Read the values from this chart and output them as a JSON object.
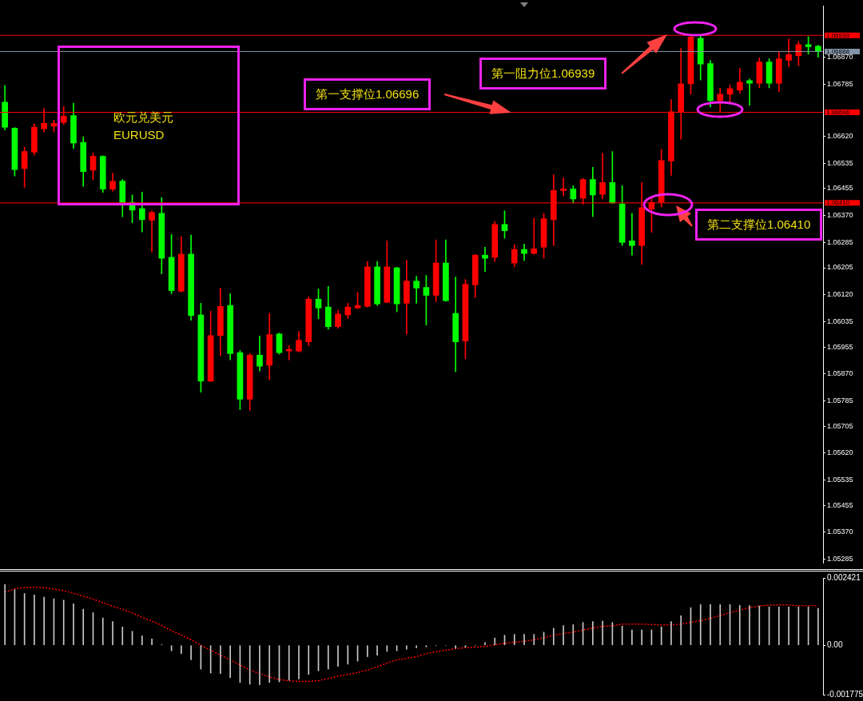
{
  "chart_data": [
    {
      "type": "candlestick",
      "categories": [
        null,
        null,
        null,
        null,
        null,
        null,
        null,
        null,
        null,
        null,
        null,
        null,
        null,
        null,
        null,
        null,
        null,
        null,
        null,
        null,
        null,
        null,
        null,
        null,
        null,
        null,
        null,
        null,
        null,
        null,
        null,
        null,
        null,
        null,
        null,
        null,
        null,
        null,
        null,
        null,
        null,
        null,
        null,
        null,
        null,
        null,
        null,
        null,
        null,
        null,
        null,
        null,
        null,
        null,
        null,
        null,
        null,
        null,
        null,
        null,
        null,
        null,
        null,
        null,
        null,
        null,
        null,
        null,
        null,
        null,
        null,
        null,
        null,
        null,
        null,
        null,
        null,
        null,
        null,
        null,
        null,
        null,
        null,
        null
      ],
      "ohlc": [
        [
          1.06728,
          1.06781,
          1.0664,
          1.06649
        ],
        [
          1.06646,
          1.06648,
          1.06495,
          1.06515
        ],
        [
          1.06518,
          1.06586,
          1.06459,
          1.06572
        ],
        [
          1.0657,
          1.06659,
          1.06561,
          1.06649
        ],
        [
          1.06644,
          1.06708,
          1.06634,
          1.06661
        ],
        [
          1.06652,
          1.06671,
          1.06634,
          1.06661
        ],
        [
          1.06664,
          1.06714,
          1.06657,
          1.06684
        ],
        [
          1.06686,
          1.06725,
          1.06582,
          1.06599
        ],
        [
          1.06601,
          1.06619,
          1.06462,
          1.06509
        ],
        [
          1.06513,
          1.06567,
          1.06482,
          1.06557
        ],
        [
          1.06557,
          1.06559,
          1.06443,
          1.06453
        ],
        [
          1.06453,
          1.06504,
          1.06447,
          1.06478
        ],
        [
          1.06479,
          1.06484,
          1.06366,
          1.0641
        ],
        [
          1.06412,
          1.06435,
          1.06347,
          1.06387
        ],
        [
          1.06392,
          1.06444,
          1.06318,
          1.06357
        ],
        [
          1.06355,
          1.06385,
          1.06256,
          1.0638
        ],
        [
          1.06377,
          1.06427,
          1.06186,
          1.06235
        ],
        [
          1.06238,
          1.0631,
          1.06123,
          1.06133
        ],
        [
          1.06131,
          1.06303,
          1.06129,
          1.06248
        ],
        [
          1.06248,
          1.06308,
          1.06039,
          1.06054
        ],
        [
          1.06056,
          1.06093,
          1.05812,
          1.05847
        ],
        [
          1.05847,
          1.06068,
          1.05845,
          1.05991
        ],
        [
          1.05991,
          1.06141,
          1.05927,
          1.06083
        ],
        [
          1.06086,
          1.06123,
          1.05914,
          1.05934
        ],
        [
          1.05937,
          1.05944,
          1.05757,
          1.0579
        ],
        [
          1.0579,
          1.05934,
          1.05755,
          1.05929
        ],
        [
          1.05929,
          1.05989,
          1.05879,
          1.05894
        ],
        [
          1.05897,
          1.06061,
          1.05852,
          1.05994
        ],
        [
          1.05996,
          1.05999,
          1.05932,
          1.05937
        ],
        [
          1.05942,
          1.05959,
          1.05914,
          1.05947
        ],
        [
          1.05942,
          1.06004,
          1.05939,
          1.05976
        ],
        [
          1.05971,
          1.06113,
          1.05959,
          1.06106
        ],
        [
          1.06106,
          1.06138,
          1.06044,
          1.06078
        ],
        [
          1.06081,
          1.06146,
          1.06011,
          1.06019
        ],
        [
          1.06019,
          1.06071,
          1.06014,
          1.06059
        ],
        [
          1.06056,
          1.06093,
          1.06044,
          1.06081
        ],
        [
          1.06078,
          1.06128,
          1.06076,
          1.06086
        ],
        [
          1.06083,
          1.06225,
          1.06081,
          1.06208
        ],
        [
          1.06208,
          1.06225,
          1.06086,
          1.06091
        ],
        [
          1.06096,
          1.0629,
          1.06094,
          1.06208
        ],
        [
          1.06205,
          1.06207,
          1.06066,
          1.06091
        ],
        [
          1.06093,
          1.06228,
          1.05996,
          1.06163
        ],
        [
          1.06163,
          1.06178,
          1.06093,
          1.06141
        ],
        [
          1.06143,
          1.06181,
          1.06024,
          1.06118
        ],
        [
          1.06118,
          1.06293,
          1.06098,
          1.0622
        ],
        [
          1.0622,
          1.06293,
          1.06099,
          1.06101
        ],
        [
          1.06061,
          1.06176,
          1.05877,
          1.05971
        ],
        [
          1.05974,
          1.06168,
          1.05917,
          1.06153
        ],
        [
          1.06151,
          1.06248,
          1.06111,
          1.06245
        ],
        [
          1.06245,
          1.0627,
          1.06193,
          1.06235
        ],
        [
          1.06238,
          1.06352,
          1.06225,
          1.06342
        ],
        [
          1.06342,
          1.06385,
          1.06298,
          1.06322
        ],
        [
          1.0622,
          1.06278,
          1.06208,
          1.06263
        ],
        [
          1.06263,
          1.0628,
          1.06228,
          1.0625
        ],
        [
          1.0625,
          1.06362,
          1.06248,
          1.06265
        ],
        [
          1.0627,
          1.06377,
          1.06235,
          1.0636
        ],
        [
          1.06357,
          1.06499,
          1.06275,
          1.06449
        ],
        [
          1.06449,
          1.06489,
          1.06432,
          1.06454
        ],
        [
          1.06454,
          1.06464,
          1.0641,
          1.06422
        ],
        [
          1.06425,
          1.06487,
          1.06405,
          1.06484
        ],
        [
          1.06484,
          1.06522,
          1.06367,
          1.06435
        ],
        [
          1.06437,
          1.06567,
          1.06422,
          1.06474
        ],
        [
          1.06474,
          1.06572,
          1.06408,
          1.0641
        ],
        [
          1.06407,
          1.06464,
          1.06275,
          1.06285
        ],
        [
          1.0629,
          1.06377,
          1.06245,
          1.06275
        ],
        [
          1.06275,
          1.06474,
          1.06215,
          1.06395
        ],
        [
          1.0639,
          1.06427,
          1.06317,
          1.06412
        ],
        [
          1.06412,
          1.06579,
          1.06397,
          1.06544
        ],
        [
          1.06542,
          1.06736,
          1.06497,
          1.06698
        ],
        [
          1.06698,
          1.06898,
          1.06611,
          1.06786
        ],
        [
          1.06786,
          1.06936,
          1.06753,
          1.06934
        ],
        [
          1.0693,
          1.06939,
          1.06798,
          1.06848
        ],
        [
          1.0685,
          1.0686,
          1.06713,
          1.06733
        ],
        [
          1.06733,
          1.06773,
          1.06696,
          1.06753
        ],
        [
          1.06753,
          1.06783,
          1.06728,
          1.06771
        ],
        [
          1.06766,
          1.06835,
          1.06756,
          1.06791
        ],
        [
          1.06796,
          1.06801,
          1.06718,
          1.06788
        ],
        [
          1.06788,
          1.06868,
          1.06773,
          1.06855
        ],
        [
          1.06855,
          1.06865,
          1.06773,
          1.06788
        ],
        [
          1.06788,
          1.06888,
          1.06761,
          1.06865
        ],
        [
          1.0686,
          1.06928,
          1.0684,
          1.06878
        ],
        [
          1.06875,
          1.0692,
          1.06843,
          1.0691
        ],
        [
          1.0691,
          1.06935,
          1.0688,
          1.06903
        ],
        [
          1.06905,
          1.06908,
          1.0687,
          1.06888
        ]
      ],
      "colors": [
        "#00ff00",
        "#00ff00",
        "#ff0000",
        "#ff0000",
        "#ff0000",
        "#ff0000",
        "#ff0000",
        "#00ff00",
        "#00ff00",
        "#ff0000",
        "#00ff00",
        "#ff0000",
        "#00ff00",
        "#00ff00",
        "#00ff00",
        "#ff0000",
        "#00ff00",
        "#00ff00",
        "#ff0000",
        "#00ff00",
        "#00ff00",
        "#ff0000",
        "#ff0000",
        "#00ff00",
        "#00ff00",
        "#ff0000",
        "#00ff00",
        "#ff0000",
        "#00ff00",
        "#ff0000",
        "#ff0000",
        "#ff0000",
        "#00ff00",
        "#00ff00",
        "#ff0000",
        "#ff0000",
        "#ff0000",
        "#ff0000",
        "#00ff00",
        "#ff0000",
        "#00ff00",
        "#ff0000",
        "#00ff00",
        "#00ff00",
        "#ff0000",
        "#00ff00",
        "#00ff00",
        "#ff0000",
        "#ff0000",
        "#00ff00",
        "#ff0000",
        "#00ff00",
        "#ff0000",
        "#00ff00",
        "#ff0000",
        "#ff0000",
        "#ff0000",
        "#ff0000",
        "#00ff00",
        "#ff0000",
        "#00ff00",
        "#ff0000",
        "#00ff00",
        "#00ff00",
        "#00ff00",
        "#ff0000",
        "#ff0000",
        "#ff0000",
        "#ff0000",
        "#ff0000",
        "#ff0000",
        "#00ff00",
        "#00ff00",
        "#ff0000",
        "#ff0000",
        "#ff0000",
        "#00ff00",
        "#ff0000",
        "#00ff00",
        "#ff0000",
        "#ff0000",
        "#ff0000",
        "#00ff00",
        "#00ff00"
      ],
      "ylim": [
        1.05272,
        1.07032
      ],
      "yticks": [
        {
          "value": 1.0687,
          "label": "1.06870"
        },
        1.06785,
        {
          "value": 1.0662,
          "label": "1.06620"
        },
        1.06535,
        1.06455,
        {
          "value": 1.0637,
          "label": "1.06370"
        },
        1.06285,
        1.06205,
        {
          "value": 1.0612,
          "label": "1.06120"
        },
        1.06035,
        1.05955,
        {
          "value": 1.0587,
          "label": "1.05870"
        },
        1.05785,
        1.05705,
        {
          "value": 1.0562,
          "label": "1.05620"
        },
        1.05535,
        1.05455,
        {
          "value": 1.0537,
          "label": "1.05370"
        },
        1.05285
      ],
      "ref_lines": [
        {
          "axis": "y",
          "value": 1.06939,
          "label": "1.06939",
          "color": "#ff0000"
        },
        {
          "axis": "y",
          "value": 1.06888,
          "label": "1.06888",
          "color": "#8494a8"
        },
        {
          "axis": "y",
          "value": 1.06696,
          "label": "1.06696",
          "color": "#ff0000"
        },
        {
          "axis": "y",
          "value": 1.0641,
          "label": "1.06410",
          "color": "#ff0000"
        }
      ],
      "annotations": [
        "欧元兑美元",
        "EURUSD",
        {
          "text": "第一阻力位1.06939",
          "y": 1.06939
        },
        {
          "text": "第一支撑位1.06696",
          "y": 1.06696
        },
        {
          "text": "第二支撑位1.06410",
          "y": 1.0641
        }
      ],
      "tick_labels": "y",
      "grid": false,
      "legend": false
    },
    {
      "type": "bar",
      "categories": [
        null,
        null,
        null,
        null,
        null,
        null,
        null,
        null,
        null,
        null,
        null,
        null,
        null,
        null,
        null,
        null,
        null,
        null,
        null,
        null,
        null,
        null,
        null,
        null,
        null,
        null,
        null,
        null,
        null,
        null,
        null,
        null,
        null,
        null,
        null,
        null,
        null,
        null,
        null,
        null,
        null,
        null,
        null,
        null,
        null,
        null,
        null,
        null,
        null,
        null,
        null,
        null,
        null,
        null,
        null,
        null,
        null,
        null,
        null,
        null,
        null,
        null,
        null,
        null,
        null,
        null,
        null,
        null,
        null,
        null,
        null,
        null,
        null,
        null,
        null,
        null,
        null,
        null,
        null,
        null,
        null,
        null,
        null,
        null
      ],
      "series": [
        {
          "type": "bar",
          "color": "#c8c8c8",
          "values": [
            0.00218,
            0.002,
            0.00186,
            0.00181,
            0.00173,
            0.00167,
            0.00162,
            0.00149,
            0.0013,
            0.00117,
            0.00098,
            0.00085,
            0.00066,
            0.0005,
            0.00034,
            0.00023,
            2e-05,
            -0.0002,
            -0.0003,
            -0.00052,
            -0.00086,
            -0.001,
            -0.00102,
            -0.00116,
            -0.00134,
            -0.0014,
            -0.00142,
            -0.00134,
            -0.00132,
            -0.00126,
            -0.00121,
            -0.00105,
            -0.00092,
            -0.00086,
            -0.00076,
            -0.00068,
            -0.00057,
            -0.00041,
            -0.00036,
            -0.00022,
            -0.0002,
            -0.00014,
            -9e-05,
            -6e-05,
            0,
            0,
            -0.00011,
            -7e-05,
            0,
            0.0001,
            0.00026,
            0.00036,
            0.00039,
            0.00039,
            0.00039,
            0.00047,
            0.00061,
            0.00071,
            0.00074,
            0.00082,
            0.00085,
            0.00087,
            0.00082,
            0.00069,
            0.00055,
            0.00055,
            0.00055,
            0.00066,
            0.00085,
            0.00106,
            0.00135,
            0.00146,
            0.00146,
            0.00146,
            0.00146,
            0.00143,
            0.00143,
            0.00141,
            0.00138,
            0.00138,
            0.00138,
            0.00138,
            0.00138,
            0.00133
          ]
        },
        {
          "type": "line",
          "color": "#ff0000",
          "line_style": "dotted",
          "values": [
            0.00191,
            0.00203,
            0.00207,
            0.00209,
            0.00207,
            0.00202,
            0.00196,
            0.00187,
            0.00176,
            0.00166,
            0.00153,
            0.00141,
            0.00129,
            0.00116,
            0.001,
            0.00087,
            0.00071,
            0.00052,
            0.00037,
            0.0002,
            0,
            -0.00018,
            -0.00036,
            -0.00053,
            -0.00071,
            -0.00089,
            -0.00102,
            -0.00114,
            -0.00123,
            -0.00128,
            -0.0013,
            -0.0013,
            -0.00127,
            -0.0012,
            -0.00111,
            -0.00105,
            -0.00098,
            -0.00089,
            -0.00078,
            -0.00064,
            -0.00053,
            -0.00047,
            -0.00041,
            -0.0003,
            -0.00023,
            -0.00018,
            -0.00012,
            -9e-05,
            -7e-05,
            -4e-05,
            2e-05,
            7e-05,
            0.00011,
            0.00014,
            0.0002,
            0.00027,
            0.00036,
            0.00042,
            0.00047,
            0.00055,
            0.00062,
            0.00068,
            0.0007,
            0.00076,
            0.00076,
            0.00076,
            0.00074,
            0.00073,
            0.00073,
            0.00076,
            0.00082,
            0.00089,
            0.00096,
            0.00107,
            0.00117,
            0.00126,
            0.00135,
            0.00142,
            0.00144,
            0.00145,
            0.00145,
            0.00142,
            0.00142,
            0.00142
          ]
        }
      ],
      "ylim": [
        -0.001775,
        0.002421
      ],
      "yticks": [
        0.002421,
        {
          "value": 0,
          "label": "0.00"
        },
        -0.001775
      ],
      "tick_labels": "y",
      "grid": false,
      "legend": false,
      "marker": "none"
    }
  ]
}
